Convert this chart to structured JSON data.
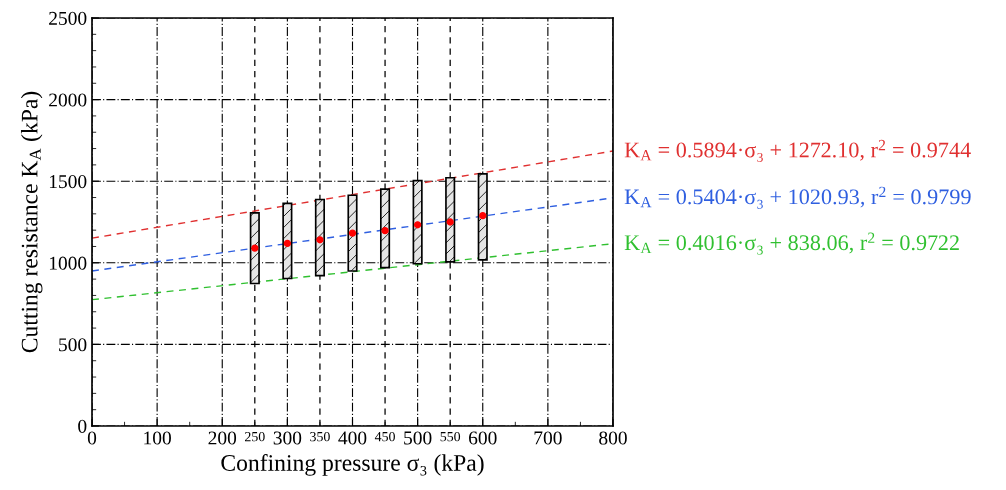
{
  "chart_data": {
    "type": "bar",
    "xlabel": "Confining pressure σ₃ (kPa)",
    "ylabel": "Cutting resistance K$_{A}$ (kPa)",
    "xlim": [
      0,
      800
    ],
    "xticks": [
      0,
      100,
      200,
      300,
      400,
      500,
      600,
      700,
      800
    ],
    "ylim": [
      0,
      2500
    ],
    "yticks": [
      0,
      500,
      1000,
      1500,
      2000,
      2500
    ],
    "grid": true,
    "series": [
      {
        "color": "#000000",
        "x": [
          250,
          300,
          350,
          400,
          450,
          500,
          550,
          600
        ],
        "base": [
          873,
          904,
          921,
          950,
          970,
          994,
          1006,
          1018
        ],
        "values": [
          433,
          460,
          467,
          464,
          481,
          510,
          515,
          527
        ]
      },
      {
        "type": "scatter",
        "color": "#ff0000",
        "marker": "circle",
        "x": [
          250,
          300,
          350,
          400,
          450,
          500,
          550,
          600
        ],
        "values": [
          1090,
          1119,
          1141,
          1182,
          1197,
          1233,
          1250,
          1289
        ]
      },
      {
        "type": "line",
        "name": "K$_{A}$ = 0.5894·σ₃ + 1272.10, r$^{2}$ = 0.9744",
        "color": "#e03030",
        "line_style": "dashed",
        "x": [
          0,
          800
        ],
        "values": [
          1151,
          1685
        ]
      },
      {
        "type": "line",
        "name": "K$_{A}$ = 0.5404·σ₃ + 1020.93, r$^{2}$ = 0.9799",
        "color": "#2f5fe0",
        "line_style": "dashed",
        "x": [
          0,
          800
        ],
        "values": [
          950,
          1398
        ]
      },
      {
        "type": "line",
        "name": "K$_{A}$ = 0.4016·σ₃ + 838.06, r$^{2}$ = 0.9722",
        "color": "#30c030",
        "line_style": "dashed",
        "x": [
          0,
          800
        ],
        "values": [
          774,
          1117
        ]
      }
    ],
    "ref_lines": [
      {
        "axis": "x",
        "value": 250,
        "label": "250",
        "line_style": "dashed"
      },
      {
        "axis": "x",
        "value": 350,
        "label": "350",
        "line_style": "dashed"
      },
      {
        "axis": "x",
        "value": 450,
        "label": "450",
        "line_style": "dashed"
      },
      {
        "axis": "x",
        "value": 550,
        "label": "550",
        "line_style": "dashed"
      }
    ]
  }
}
